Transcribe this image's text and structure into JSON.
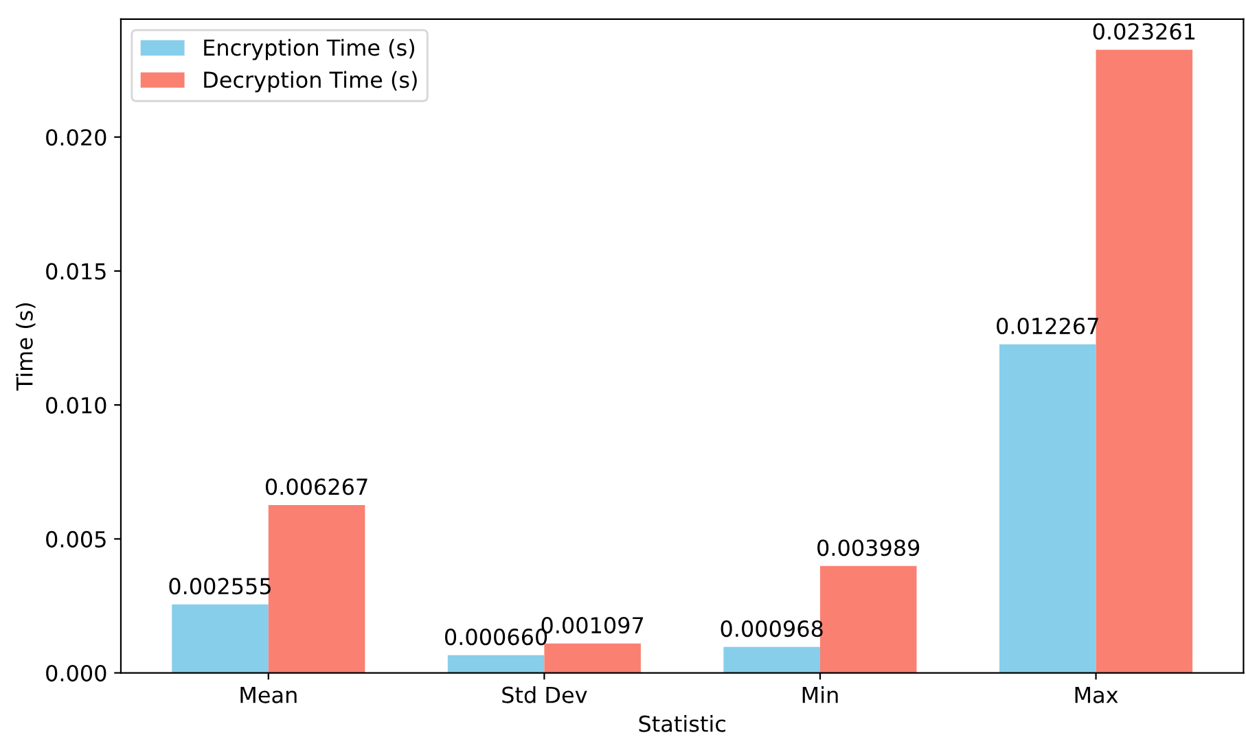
{
  "chart_data": {
    "type": "bar",
    "xlabel": "Statistic",
    "ylabel": "Time (s)",
    "categories": [
      "Mean",
      "Std Dev",
      "Min",
      "Max"
    ],
    "series": [
      {
        "name": "Encryption Time (s)",
        "color": "#87ceeb",
        "values": [
          0.002555,
          0.00066,
          0.000968,
          0.012267
        ],
        "value_labels": [
          "0.002555",
          "0.000660",
          "0.000968",
          "0.012267"
        ]
      },
      {
        "name": "Decryption Time (s)",
        "color": "#fa8072",
        "values": [
          0.006267,
          0.001097,
          0.003989,
          0.023261
        ],
        "value_labels": [
          "0.006267",
          "0.001097",
          "0.003989",
          "0.023261"
        ]
      }
    ],
    "ylim": [
      0,
      0.0244
    ],
    "yticks": [
      {
        "value": 0,
        "label": "0.000"
      },
      {
        "value": 0.005,
        "label": "0.005"
      },
      {
        "value": 0.01,
        "label": "0.010"
      },
      {
        "value": 0.015,
        "label": "0.015"
      },
      {
        "value": 0.02,
        "label": "0.020"
      }
    ],
    "legend": "top left",
    "grid": false
  }
}
